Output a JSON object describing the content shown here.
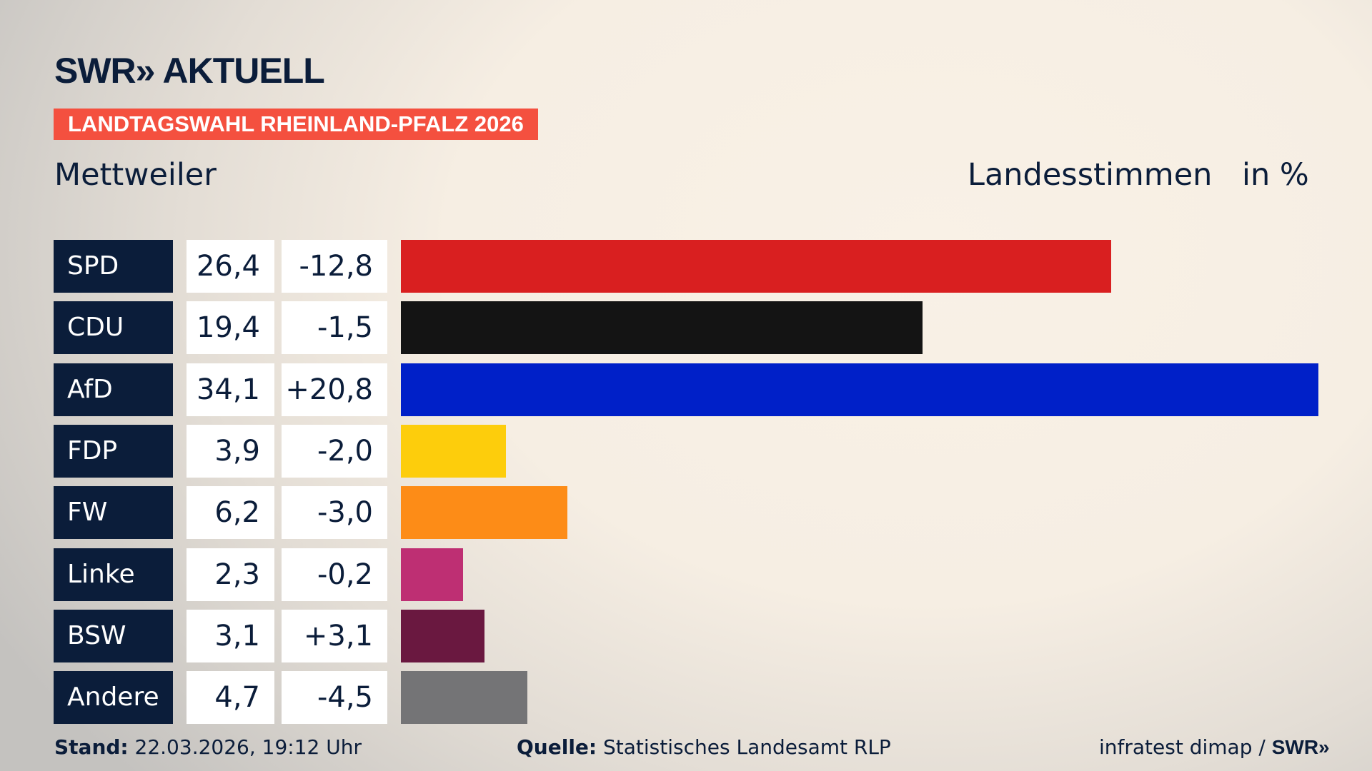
{
  "header": {
    "logo": "SWR» AKTUELL",
    "banner": "LANDTAGSWAHL RHEINLAND-PFALZ 2026",
    "place": "Mettweiler",
    "metric": "Landesstimmen",
    "unit": "in %"
  },
  "chart_data": {
    "type": "bar",
    "orientation": "horizontal",
    "xlim": [
      0,
      34.1
    ],
    "categories": [
      "SPD",
      "CDU",
      "AfD",
      "FDP",
      "FW",
      "Linke",
      "BSW",
      "Andere"
    ],
    "values": [
      26.4,
      19.4,
      34.1,
      3.9,
      6.2,
      2.3,
      3.1,
      4.7
    ],
    "value_labels": [
      "26,4",
      "19,4",
      "34,1",
      "3,9",
      "6,2",
      "2,3",
      "3,1",
      "4,7"
    ],
    "diff_labels": [
      "-12,8",
      "-1,5",
      "+20,8",
      "-2,0",
      "-3,0",
      "-0,2",
      "+3,1",
      "-4,5"
    ],
    "colors": [
      "#d91f20",
      "#141414",
      "#0020c8",
      "#fdcd0c",
      "#fd8c17",
      "#be2f73",
      "#6a1840",
      "#747476"
    ]
  },
  "footer": {
    "stand_label": "Stand:",
    "stand": "22.03.2026, 19:12 Uhr",
    "source_label": "Quelle:",
    "source": "Statistisches Landesamt RLP",
    "credit": "infratest dimap / ",
    "credit_logo": "SWR»"
  }
}
